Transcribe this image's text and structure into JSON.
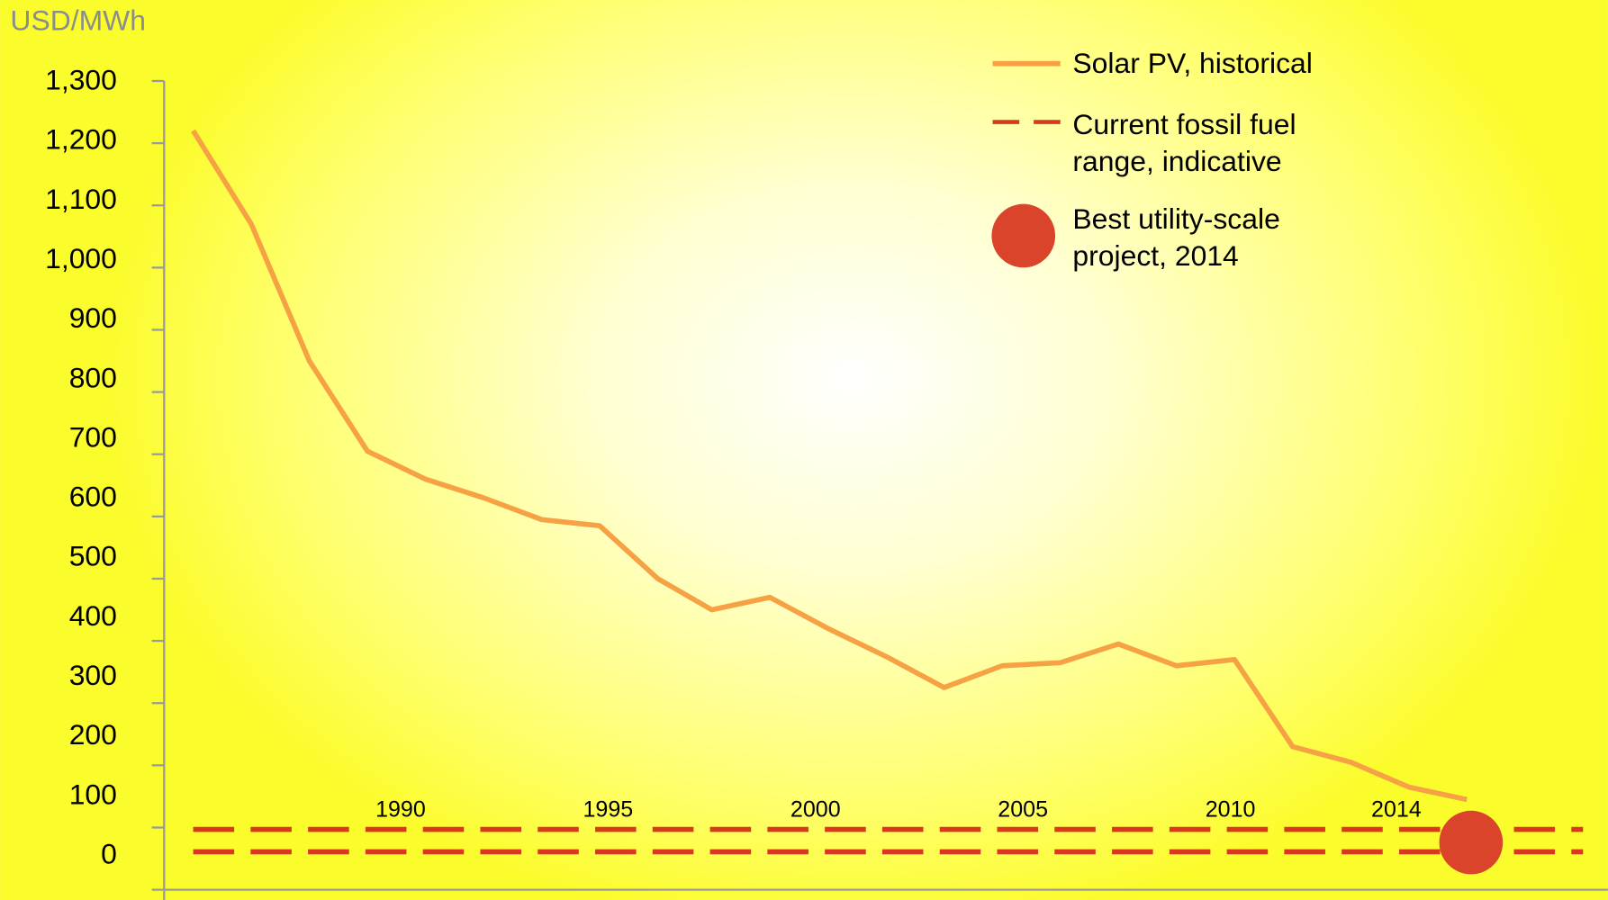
{
  "chart_data": {
    "type": "line",
    "y_axis_label": "USD/MWh",
    "xlim": [
      1984.3,
      2019.1
    ],
    "xticks": [
      1990,
      1995,
      2000,
      2005,
      2010,
      2014
    ],
    "ylim": [
      0,
      1300
    ],
    "yticks": [
      0,
      100,
      200,
      300,
      400,
      500,
      600,
      700,
      800,
      900,
      {
        "value": 1000,
        "label": "1,000"
      },
      {
        "value": 1100,
        "label": "1,100"
      },
      {
        "value": 1200,
        "label": "1,200"
      },
      {
        "value": 1300,
        "label": "1,300"
      }
    ],
    "series": [
      {
        "name": "Solar PV, historical",
        "color": "#f7a145",
        "x": [
          1985.0,
          1986.4,
          1987.8,
          1989.2,
          1990.6,
          1992.0,
          1993.4,
          1994.8,
          1996.2,
          1997.5,
          1998.9,
          2000.3,
          2001.7,
          2003.1,
          2004.5,
          2005.9,
          2007.3,
          2008.7,
          2010.1,
          2011.5,
          2012.9,
          2014.3,
          2015.7
        ],
        "values": [
          1220,
          1070,
          850,
          705,
          660,
          630,
          595,
          585,
          500,
          450,
          470,
          420,
          375,
          325,
          360,
          365,
          395,
          360,
          370,
          230,
          205,
          165,
          145
        ]
      },
      {
        "name": "Current fossil fuel range, indicative",
        "color": "#d9381e",
        "dashed": true,
        "x": [
          1985.0,
          2018.5
        ],
        "range": [
          61,
          97
        ]
      },
      {
        "name": "Best utility-scale project, 2014",
        "color": "#d9442b",
        "marker": "circle",
        "x": [
          2015.8
        ],
        "values": [
          76
        ]
      }
    ]
  }
}
